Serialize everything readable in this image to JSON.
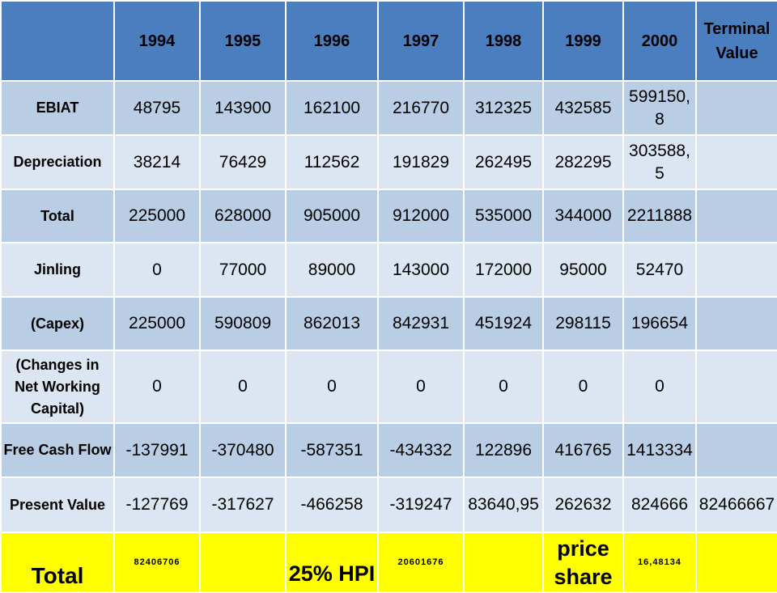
{
  "table": {
    "headers": [
      "",
      "1994",
      "1995",
      "1996",
      "1997",
      "1998",
      "1999",
      "2000",
      "Terminal Value"
    ],
    "rows": [
      {
        "label": "EBIAT",
        "cells": [
          "48795",
          "143900",
          "162100",
          "216770",
          "312325",
          "432585",
          "599150,\n8",
          ""
        ]
      },
      {
        "label": "Depreciation",
        "cells": [
          "38214",
          "76429",
          "112562",
          "191829",
          "262495",
          "282295",
          "303588,\n5",
          ""
        ]
      },
      {
        "label": "Total",
        "cells": [
          "225000",
          "628000",
          "905000",
          "912000",
          "535000",
          "344000",
          "2211888",
          ""
        ]
      },
      {
        "label": "Jinling",
        "cells": [
          "0",
          "77000",
          "89000",
          "143000",
          "172000",
          "95000",
          "52470",
          ""
        ]
      },
      {
        "label": "(Capex)",
        "cells": [
          "225000",
          "590809",
          "862013",
          "842931",
          "451924",
          "298115",
          "196654",
          ""
        ]
      },
      {
        "label": "(Changes in\nNet Working\nCapital)",
        "cells": [
          "0",
          "0",
          "0",
          "0",
          "0",
          "0",
          "0",
          ""
        ]
      },
      {
        "label": "Free Cash Flow",
        "cells": [
          "-137991",
          "-370480",
          "-587351",
          "-434332",
          "122896",
          "416765",
          "1413334",
          ""
        ]
      },
      {
        "label": "Present Value",
        "cells": [
          "-127769",
          "-317627",
          "-466258",
          "-319247",
          "83640,95",
          "262632",
          "824666",
          "82466667"
        ]
      }
    ],
    "total_row": {
      "label": "Total",
      "cells": [
        "82406706",
        "",
        "25% HPI",
        "20601676",
        "",
        "price\nshare",
        "16,48134",
        ""
      ]
    }
  },
  "colors": {
    "header": "#4a7ebf",
    "row_dark": "#b9cde4",
    "row_light": "#dbe6f2",
    "highlight": "#ffff00"
  }
}
